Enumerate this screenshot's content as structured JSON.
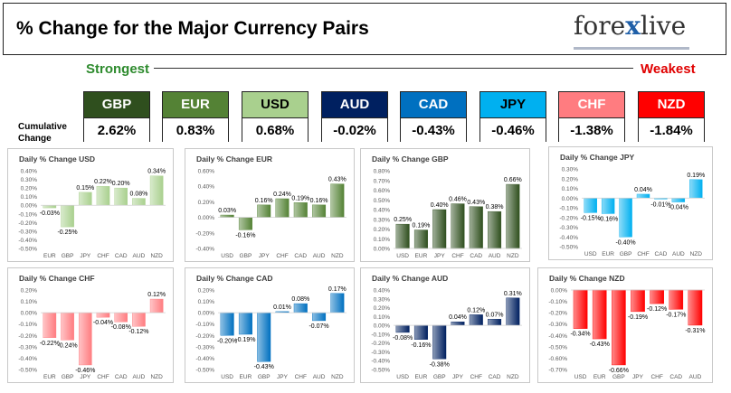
{
  "header": {
    "title": "% Change for the Major Currency Pairs",
    "logo_main": "fore",
    "logo_x": "x",
    "logo_tail": "live"
  },
  "scale": {
    "strongest": "Strongest",
    "weakest": "Weakest"
  },
  "cumulative": {
    "label_line1": "Cumulative",
    "label_line2": "Change",
    "pairs": [
      {
        "name": "GBP",
        "value": "2.62%",
        "head_color": "#2f4f1e",
        "text_color": "#ffffff"
      },
      {
        "name": "EUR",
        "value": "0.83%",
        "head_color": "#548235",
        "text_color": "#ffffff"
      },
      {
        "name": "USD",
        "value": "0.68%",
        "head_color": "#a9d08e",
        "text_color": "#000000"
      },
      {
        "name": "AUD",
        "value": "-0.02%",
        "head_color": "#002060",
        "text_color": "#ffffff"
      },
      {
        "name": "CAD",
        "value": "-0.43%",
        "head_color": "#0070c0",
        "text_color": "#ffffff"
      },
      {
        "name": "JPY",
        "value": "-0.46%",
        "head_color": "#00b0f0",
        "text_color": "#000000"
      },
      {
        "name": "CHF",
        "value": "-1.38%",
        "head_color": "#ff7c80",
        "text_color": "#ffffff"
      },
      {
        "name": "NZD",
        "value": "-1.84%",
        "head_color": "#ff0000",
        "text_color": "#ffffff"
      }
    ]
  },
  "chart_data": [
    {
      "type": "bar",
      "title": "Daily % Change USD",
      "color": "#a9d08e",
      "categories": [
        "EUR",
        "GBP",
        "JPY",
        "CHF",
        "CAD",
        "AUD",
        "NZD"
      ],
      "values": [
        -0.03,
        -0.25,
        0.15,
        0.22,
        0.2,
        0.08,
        0.34
      ],
      "labels": [
        "-0.03%",
        "-0.25%",
        "0.15%",
        "0.22%",
        "0.20%",
        "0.08%",
        "0.34%"
      ],
      "ylim": [
        -0.5,
        0.4
      ],
      "yticks": [
        -0.5,
        -0.4,
        -0.3,
        -0.2,
        -0.1,
        0,
        0.1,
        0.2,
        0.3,
        0.4
      ],
      "yticklabels": [
        "-0.50%",
        "-0.40%",
        "-0.30%",
        "-0.20%",
        "-0.10%",
        "0.00%",
        "0.10%",
        "0.20%",
        "0.30%",
        "0.40%"
      ]
    },
    {
      "type": "bar",
      "title": "Daily % Change EUR",
      "color": "#548235",
      "categories": [
        "USD",
        "GBP",
        "JPY",
        "CHF",
        "CAD",
        "AUD",
        "NZD"
      ],
      "values": [
        0.03,
        -0.16,
        0.16,
        0.24,
        0.19,
        0.16,
        0.43
      ],
      "labels": [
        "0.03%",
        "-0.16%",
        "0.16%",
        "0.24%",
        "0.19%",
        "0.16%",
        "0.43%"
      ],
      "ylim": [
        -0.4,
        0.6
      ],
      "yticks": [
        -0.4,
        -0.2,
        0,
        0.2,
        0.4,
        0.6
      ],
      "yticklabels": [
        "-0.40%",
        "-0.20%",
        "0.00%",
        "0.20%",
        "0.40%",
        "0.60%"
      ]
    },
    {
      "type": "bar",
      "title": "Daily % Change GBP",
      "color": "#2f4f1e",
      "categories": [
        "USD",
        "EUR",
        "JPY",
        "CHF",
        "CAD",
        "AUD",
        "NZD"
      ],
      "values": [
        0.25,
        0.19,
        0.4,
        0.46,
        0.43,
        0.38,
        0.66
      ],
      "labels": [
        "0.25%",
        "0.19%",
        "0.40%",
        "0.46%",
        "0.43%",
        "0.38%",
        "0.66%"
      ],
      "ylim": [
        0,
        0.8
      ],
      "yticks": [
        0,
        0.1,
        0.2,
        0.3,
        0.4,
        0.5,
        0.6,
        0.7,
        0.8
      ],
      "yticklabels": [
        "0.00%",
        "0.10%",
        "0.20%",
        "0.30%",
        "0.40%",
        "0.50%",
        "0.60%",
        "0.70%",
        "0.80%"
      ]
    },
    {
      "type": "bar",
      "title": "Daily % Change JPY",
      "color": "#00b0f0",
      "categories": [
        "USD",
        "EUR",
        "GBP",
        "CHF",
        "CAD",
        "AUD",
        "NZD"
      ],
      "values": [
        -0.15,
        -0.16,
        -0.4,
        0.04,
        -0.01,
        -0.04,
        0.19
      ],
      "labels": [
        "-0.15%",
        "-0.16%",
        "-0.40%",
        "0.04%",
        "-0.01%",
        "-0.04%",
        "0.19%"
      ],
      "ylim": [
        -0.5,
        0.3
      ],
      "yticks": [
        -0.5,
        -0.4,
        -0.3,
        -0.2,
        -0.1,
        0,
        0.1,
        0.2,
        0.3
      ],
      "yticklabels": [
        "-0.50%",
        "-0.40%",
        "-0.30%",
        "-0.20%",
        "-0.10%",
        "0.00%",
        "0.10%",
        "0.20%",
        "0.30%"
      ]
    },
    {
      "type": "bar",
      "title": "Daily % Change CHF",
      "color": "#ff7c80",
      "categories": [
        "EUR",
        "GBP",
        "JPY",
        "CHF",
        "CAD",
        "AUD",
        "NZD"
      ],
      "values": [
        -0.22,
        -0.24,
        -0.46,
        -0.04,
        -0.08,
        -0.12,
        0.12
      ],
      "labels": [
        "-0.22%",
        "-0.24%",
        "-0.46%",
        "-0.04%",
        "-0.08%",
        "-0.12%",
        "0.12%"
      ],
      "ylim": [
        -0.5,
        0.2
      ],
      "yticks": [
        -0.5,
        -0.4,
        -0.3,
        -0.2,
        -0.1,
        0,
        0.1,
        0.2
      ],
      "yticklabels": [
        "-0.50%",
        "-0.40%",
        "-0.30%",
        "-0.20%",
        "-0.10%",
        "0.00%",
        "0.10%",
        "0.20%"
      ]
    },
    {
      "type": "bar",
      "title": "Daily % Change CAD",
      "color": "#0070c0",
      "categories": [
        "USD",
        "EUR",
        "GBP",
        "JPY",
        "CHF",
        "AUD",
        "NZD"
      ],
      "values": [
        -0.2,
        -0.19,
        -0.43,
        0.01,
        0.08,
        -0.07,
        0.17
      ],
      "labels": [
        "-0.20%",
        "-0.19%",
        "-0.43%",
        "0.01%",
        "0.08%",
        "-0.07%",
        "0.17%"
      ],
      "ylim": [
        -0.5,
        0.2
      ],
      "yticks": [
        -0.5,
        -0.4,
        -0.3,
        -0.2,
        -0.1,
        0,
        0.1,
        0.2
      ],
      "yticklabels": [
        "-0.50%",
        "-0.40%",
        "-0.30%",
        "-0.20%",
        "-0.10%",
        "0.00%",
        "0.10%",
        "0.20%"
      ]
    },
    {
      "type": "bar",
      "title": "Daily % Change AUD",
      "color": "#002060",
      "categories": [
        "USD",
        "EUR",
        "GBP",
        "JPY",
        "CHF",
        "CAD",
        "NZD"
      ],
      "values": [
        -0.08,
        -0.16,
        -0.38,
        0.04,
        0.12,
        0.07,
        0.31
      ],
      "labels": [
        "-0.08%",
        "-0.16%",
        "-0.38%",
        "0.04%",
        "0.12%",
        "0.07%",
        "0.31%"
      ],
      "ylim": [
        -0.5,
        0.4
      ],
      "yticks": [
        -0.5,
        -0.4,
        -0.3,
        -0.2,
        -0.1,
        0,
        0.1,
        0.2,
        0.3,
        0.4
      ],
      "yticklabels": [
        "-0.50%",
        "-0.40%",
        "-0.30%",
        "-0.20%",
        "-0.10%",
        "0.00%",
        "0.10%",
        "0.20%",
        "0.30%",
        "0.40%"
      ]
    },
    {
      "type": "bar",
      "title": "Daily % Change NZD",
      "color": "#ff0000",
      "categories": [
        "USD",
        "EUR",
        "GBP",
        "JPY",
        "CHF",
        "CAD",
        "AUD"
      ],
      "values": [
        -0.34,
        -0.43,
        -0.66,
        -0.19,
        -0.12,
        -0.17,
        -0.31
      ],
      "labels": [
        "-0.34%",
        "-0.43%",
        "-0.66%",
        "-0.19%",
        "-0.12%",
        "-0.17%",
        "-0.31%"
      ],
      "ylim": [
        -0.7,
        0
      ],
      "yticks": [
        -0.7,
        -0.6,
        -0.5,
        -0.4,
        -0.3,
        -0.2,
        -0.1,
        0
      ],
      "yticklabels": [
        "-0.70%",
        "-0.60%",
        "-0.50%",
        "-0.40%",
        "-0.30%",
        "-0.20%",
        "-0.10%",
        "0.00%"
      ]
    }
  ]
}
